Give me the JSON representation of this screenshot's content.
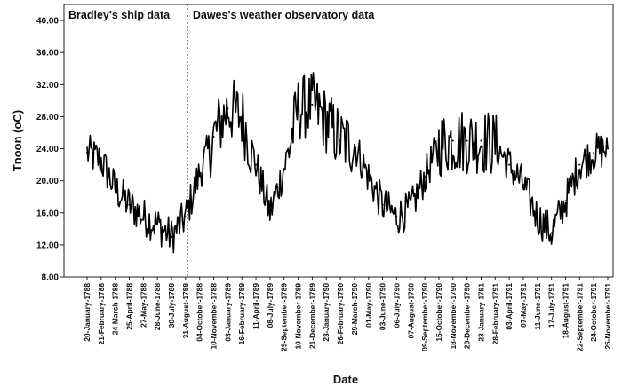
{
  "chart_data": {
    "type": "line",
    "title": "",
    "xlabel": "Date",
    "ylabel": "Tnoon (oC)",
    "ylim": [
      8.0,
      42.0
    ],
    "yticks": [
      "8.00",
      "12.00",
      "16.00",
      "20.00",
      "24.00",
      "28.00",
      "32.00",
      "36.00",
      "40.00"
    ],
    "x_tick_labels": [
      "20-January-1788",
      "21-February-1788",
      "24-March-1788",
      "25-April-1788",
      "27-May-1788",
      "28-June-1788",
      "30-July-1788",
      "31-August-1788",
      "04-October-1788",
      "10-November-1788",
      "03-January-1789",
      "16-February-1789",
      "11-April-1789",
      "08-July-1789",
      "29-September-1789",
      "10-November-1789",
      "21-December-1789",
      "23-January-1790",
      "26-February-1790",
      "29-March-1790",
      "01-May-1790",
      "03-June-1790",
      "06-July-1790",
      "07-August-1790",
      "09-September-1790",
      "15-October-1790",
      "18-November-1790",
      "20-December-1790",
      "23-January-1791",
      "28-February-1791",
      "03-April-1791",
      "07-May-1791",
      "11-June-1791",
      "17-July-1791",
      "18-August-1791",
      "22-September-1791",
      "24-October-1791",
      "25-November-1791"
    ],
    "grid": false,
    "legend": "none",
    "series": [
      {
        "color": "#000000",
        "x": [
          "20-January-1788",
          "21-February-1788",
          "24-March-1788",
          "25-April-1788",
          "27-May-1788",
          "28-June-1788",
          "30-July-1788",
          "31-August-1788",
          "04-October-1788",
          "10-November-1788",
          "03-January-1789",
          "16-February-1789",
          "11-April-1789",
          "08-July-1789",
          "29-September-1789",
          "10-November-1789",
          "21-December-1789",
          "23-January-1790",
          "26-February-1790",
          "29-March-1790",
          "01-May-1790",
          "03-June-1790",
          "06-July-1790",
          "07-August-1790",
          "09-September-1790",
          "15-October-1790",
          "18-November-1790",
          "20-December-1790",
          "23-January-1791",
          "28-February-1791",
          "03-April-1791",
          "07-May-1791",
          "11-June-1791",
          "17-July-1791",
          "18-August-1791",
          "22-September-1791",
          "24-October-1791",
          "25-November-1791"
        ],
        "values": [
          23.5,
          22.5,
          19.0,
          17.0,
          15.5,
          14.5,
          13.0,
          15.5,
          21.0,
          25.5,
          29.0,
          28.0,
          22.0,
          16.0,
          21.5,
          29.0,
          29.5,
          27.5,
          25.0,
          24.5,
          20.5,
          17.0,
          15.5,
          16.5,
          20.5,
          24.5,
          25.0,
          25.0,
          25.0,
          24.5,
          22.0,
          19.5,
          15.5,
          13.5,
          17.5,
          22.0,
          23.5,
          24.0
        ]
      }
    ],
    "annotations": [
      {
        "text": "Bradley's ship data",
        "side": "left"
      },
      {
        "text": "Dawes's weather observatory data",
        "side": "right"
      }
    ],
    "divider_at": "31-August-1788",
    "divider_style": "dotted"
  }
}
